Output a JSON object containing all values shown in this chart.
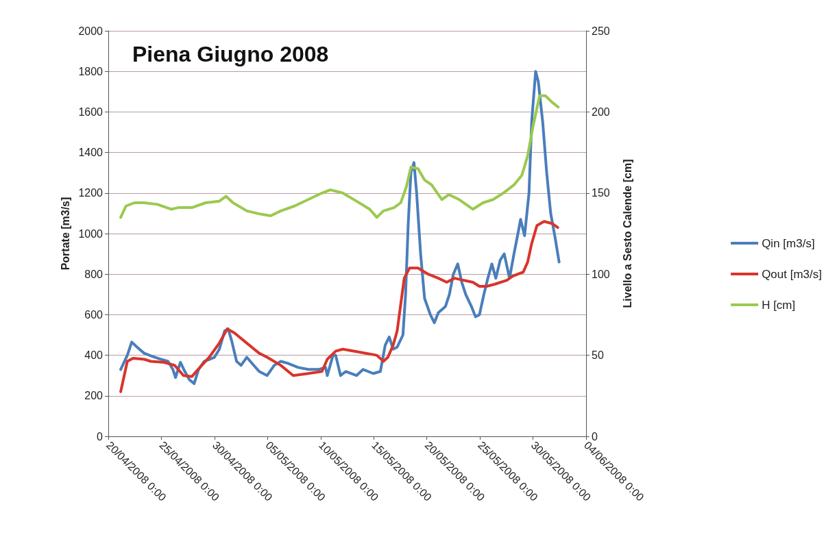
{
  "chart_data": {
    "type": "line",
    "title": "Piena Giugno 2008",
    "ylabel": "Portate [m3/s]",
    "y2label": "Livello a Sesto Calende [cm]",
    "xlim": [
      "2008-04-20",
      "2008-06-04"
    ],
    "xticks": [
      {
        "value": "2008-04-20",
        "label": "20/04/2008 0:00"
      },
      {
        "value": "2008-04-25",
        "label": "25/04/2008 0:00"
      },
      {
        "value": "2008-04-30",
        "label": "30/04/2008 0:00"
      },
      {
        "value": "2008-05-05",
        "label": "05/05/2008 0:00"
      },
      {
        "value": "2008-05-10",
        "label": "10/05/2008 0:00"
      },
      {
        "value": "2008-05-15",
        "label": "15/05/2008 0:00"
      },
      {
        "value": "2008-05-20",
        "label": "20/05/2008 0:00"
      },
      {
        "value": "2008-05-25",
        "label": "25/05/2008 0:00"
      },
      {
        "value": "2008-05-30",
        "label": "30/05/2008 0:00"
      },
      {
        "value": "2008-06-04",
        "label": "04/06/2008 0:00"
      }
    ],
    "ylim": [
      0,
      2000
    ],
    "yticks": [
      0,
      200,
      400,
      600,
      800,
      1000,
      1200,
      1400,
      1600,
      1800,
      2000
    ],
    "y2lim": [
      0,
      250
    ],
    "y2ticks": [
      0,
      50,
      100,
      150,
      200,
      250
    ],
    "grid": "y",
    "legend": "right",
    "marker": "none",
    "line_style": "solid",
    "series": [
      {
        "name": "Qin [m3/s]",
        "color": "#4a7ebb",
        "x": [
          "2008-04-21T04:00",
          "2008-04-21T19:00",
          "2008-04-22T05:00",
          "2008-04-22T17:00",
          "2008-04-23T09:00",
          "2008-04-24T03:00",
          "2008-04-24T23:00",
          "2008-04-25T15:00",
          "2008-04-26T02:00",
          "2008-04-26T08:00",
          "2008-04-26T19:00",
          "2008-04-27T05:00",
          "2008-04-27T15:00",
          "2008-04-28T02:00",
          "2008-04-28T12:00",
          "2008-04-29T01:00",
          "2008-04-29T13:00",
          "2008-04-30T00:00",
          "2008-04-30T11:00",
          "2008-04-30T23:00",
          "2008-05-01T07:00",
          "2008-05-01T15:00",
          "2008-05-02T02:00",
          "2008-05-02T12:00",
          "2008-05-03T01:00",
          "2008-05-03T13:00",
          "2008-05-04T05:00",
          "2008-05-04T23:00",
          "2008-05-05T15:00",
          "2008-05-06T06:00",
          "2008-05-06T22:00",
          "2008-05-07T21:00",
          "2008-05-08T20:00",
          "2008-05-09T19:00",
          "2008-05-10T11:00",
          "2008-05-10T15:00",
          "2008-05-11T04:00",
          "2008-05-11T10:00",
          "2008-05-11T21:00",
          "2008-05-12T09:00",
          "2008-05-13T09:00",
          "2008-05-14T00:00",
          "2008-05-14T23:00",
          "2008-05-15T15:00",
          "2008-05-16T02:00",
          "2008-05-16T11:00",
          "2008-05-16T20:00",
          "2008-05-17T05:00",
          "2008-05-17T18:00",
          "2008-05-18T00:00",
          "2008-05-18T06:00",
          "2008-05-18T12:00",
          "2008-05-18T19:00",
          "2008-05-19T01:00",
          "2008-05-19T10:00",
          "2008-05-19T19:00",
          "2008-05-20T08:00",
          "2008-05-20T17:00",
          "2008-05-21T02:00",
          "2008-05-21T18:00",
          "2008-05-22T03:00",
          "2008-05-22T12:00",
          "2008-05-22T22:00",
          "2008-05-23T07:00",
          "2008-05-23T16:00",
          "2008-05-24T05:00",
          "2008-05-24T14:00",
          "2008-05-24T23:00",
          "2008-05-25T09:00",
          "2008-05-25T18:00",
          "2008-05-26T03:00",
          "2008-05-26T12:00",
          "2008-05-26T22:00",
          "2008-05-27T07:00",
          "2008-05-27T19:00",
          "2008-05-28T05:00",
          "2008-05-28T14:00",
          "2008-05-28T20:00",
          "2008-05-29T05:00",
          "2008-05-29T15:00",
          "2008-05-29T21:00",
          "2008-05-30T06:00",
          "2008-05-30T12:00",
          "2008-05-30T22:00",
          "2008-05-31T07:00",
          "2008-05-31T16:00",
          "2008-06-01T02:00",
          "2008-06-01T11:00"
        ],
        "values": [
          330,
          400,
          465,
          440,
          410,
          395,
          380,
          370,
          330,
          290,
          365,
          320,
          280,
          260,
          330,
          370,
          380,
          390,
          430,
          520,
          530,
          470,
          370,
          350,
          390,
          360,
          320,
          300,
          350,
          370,
          360,
          340,
          330,
          330,
          340,
          300,
          400,
          400,
          300,
          320,
          300,
          330,
          310,
          320,
          450,
          490,
          430,
          440,
          500,
          700,
          1050,
          1300,
          1350,
          1200,
          900,
          680,
          600,
          560,
          610,
          640,
          700,
          800,
          850,
          760,
          700,
          640,
          590,
          600,
          700,
          780,
          850,
          780,
          870,
          900,
          780,
          900,
          1000,
          1070,
          990,
          1200,
          1550,
          1800,
          1750,
          1550,
          1300,
          1100,
          980,
          860
        ]
      },
      {
        "name": "Qout [m3/s]",
        "color": "#d9342b",
        "x": [
          "2008-04-21T04:00",
          "2008-04-21T19:00",
          "2008-04-22T08:00",
          "2008-04-23T09:00",
          "2008-04-24T00:00",
          "2008-04-25T07:00",
          "2008-04-26T06:00",
          "2008-04-27T02:00",
          "2008-04-27T21:00",
          "2008-04-28T15:00",
          "2008-04-29T12:00",
          "2008-04-30T11:00",
          "2008-05-01T05:00",
          "2008-05-01T21:00",
          "2008-05-03T01:00",
          "2008-05-04T05:00",
          "2008-05-04T23:00",
          "2008-05-06T06:00",
          "2008-05-07T10:00",
          "2008-05-08T20:00",
          "2008-05-10T03:00",
          "2008-05-10T15:00",
          "2008-05-11T10:00",
          "2008-05-12T02:00",
          "2008-05-15T07:00",
          "2008-05-15T22:00",
          "2008-05-16T08:00",
          "2008-05-16T20:00",
          "2008-05-17T05:00",
          "2008-05-17T21:00",
          "2008-05-18T09:00",
          "2008-05-19T04:00",
          "2008-05-20T03:00",
          "2008-05-21T02:00",
          "2008-05-21T21:00",
          "2008-05-22T15:00",
          "2008-05-23T10:00",
          "2008-05-24T08:00",
          "2008-05-24T23:00",
          "2008-05-25T15:00",
          "2008-05-26T09:00",
          "2008-05-27T13:00",
          "2008-05-28T02:00",
          "2008-05-28T14:00",
          "2008-05-29T02:00",
          "2008-05-29T12:00",
          "2008-05-29T21:00",
          "2008-05-30T09:00",
          "2008-05-31T01:00",
          "2008-05-31T19:00",
          "2008-06-01T08:00"
        ],
        "values": [
          220,
          370,
          385,
          380,
          370,
          365,
          350,
          300,
          295,
          340,
          390,
          460,
          530,
          510,
          460,
          410,
          390,
          350,
          300,
          310,
          320,
          380,
          420,
          430,
          400,
          370,
          390,
          450,
          520,
          780,
          830,
          830,
          800,
          780,
          760,
          780,
          770,
          760,
          740,
          740,
          750,
          770,
          790,
          800,
          810,
          860,
          950,
          1040,
          1060,
          1050,
          1030
        ]
      },
      {
        "name": "H [cm]",
        "color": "#9bc94f",
        "axis": "y2",
        "x": [
          "2008-04-21T04:00",
          "2008-04-21T16:00",
          "2008-04-22T11:00",
          "2008-04-23T09:00",
          "2008-04-24T15:00",
          "2008-04-25T22:00",
          "2008-04-26T14:00",
          "2008-04-27T21:00",
          "2008-04-29T04:00",
          "2008-04-30T11:00",
          "2008-05-01T02:00",
          "2008-05-01T18:00",
          "2008-05-03T01:00",
          "2008-05-04T08:00",
          "2008-05-05T07:00",
          "2008-05-06T06:00",
          "2008-05-07T13:00",
          "2008-05-08T20:00",
          "2008-05-10T03:00",
          "2008-05-10T22:00",
          "2008-05-12T02:00",
          "2008-05-13T09:00",
          "2008-05-14T15:00",
          "2008-05-15T07:00",
          "2008-05-15T22:00",
          "2008-05-16T22:00",
          "2008-05-17T13:00",
          "2008-05-18T02:00",
          "2008-05-18T12:00",
          "2008-05-19T04:00",
          "2008-05-19T19:00",
          "2008-05-20T11:00",
          "2008-05-21T10:00",
          "2008-05-22T02:00",
          "2008-05-23T01:00",
          "2008-05-24T08:00",
          "2008-05-25T07:00",
          "2008-05-26T06:00",
          "2008-05-27T05:00",
          "2008-05-28T05:00",
          "2008-05-28T23:00",
          "2008-05-29T12:00",
          "2008-05-30T00:00",
          "2008-05-30T15:00",
          "2008-05-31T04:00",
          "2008-05-31T19:00",
          "2008-06-01T09:00"
        ],
        "values": [
          135,
          142,
          144,
          144,
          143,
          140,
          141,
          141,
          144,
          145,
          148,
          144,
          139,
          137,
          136,
          139,
          142,
          146,
          150,
          152,
          150,
          145,
          140,
          135,
          139,
          141,
          144,
          154,
          166,
          165,
          158,
          155,
          146,
          149,
          146,
          140,
          144,
          146,
          150,
          155,
          161,
          173,
          191,
          210,
          210,
          206,
          203
        ]
      }
    ]
  }
}
